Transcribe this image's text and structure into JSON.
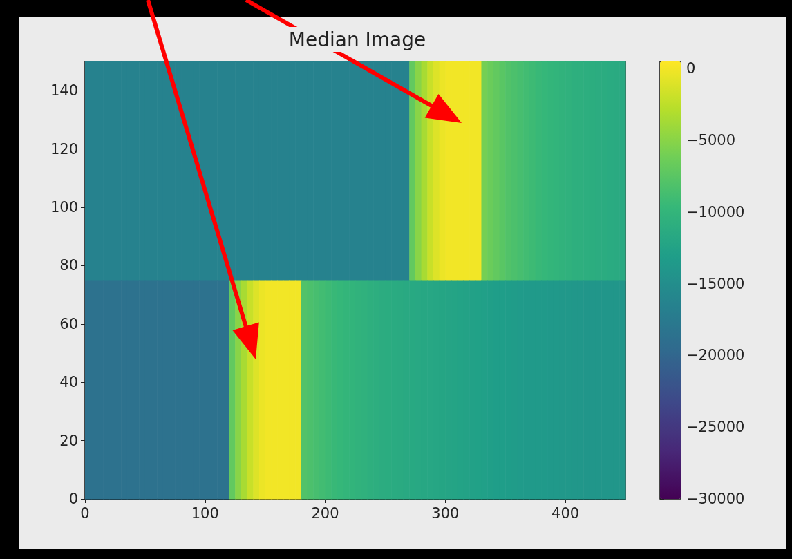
{
  "chart_data": {
    "type": "heatmap",
    "title": "Median Image",
    "xlim": [
      0,
      450
    ],
    "xticks": [
      0,
      100,
      200,
      300,
      400
    ],
    "ylim": [
      0,
      150
    ],
    "yticks": [
      0,
      20,
      40,
      60,
      80,
      100,
      120,
      140
    ],
    "clim": [
      -30000,
      500
    ],
    "cticks": [
      0,
      {
        "value": -5000,
        "label": "−5000"
      },
      {
        "value": -10000,
        "label": "−10000"
      },
      {
        "value": -15000,
        "label": "−15000"
      },
      {
        "value": -20000,
        "label": "−20000"
      },
      {
        "value": -25000,
        "label": "−25000"
      },
      {
        "value": -30000,
        "label": "−30000"
      }
    ],
    "cells": [
      [
        -16500,
        -16500,
        -16500,
        -16500,
        -16500,
        -16500,
        -16500,
        -16500,
        -16500,
        -16500,
        -16500,
        -16500,
        -16500,
        -16500,
        -16500,
        -16500,
        -16500,
        -16500,
        -16500,
        -16500,
        -16500,
        -16500,
        -16500,
        -16500,
        -16500,
        -16500,
        -16500,
        -16500,
        -16500,
        -16500,
        -16500,
        -16500,
        -16500,
        -16500,
        -16500,
        -16500,
        -16500,
        -16500,
        -16500,
        -16500,
        -16500,
        -16500,
        -16500,
        -16500,
        -16500,
        -16500,
        -16500,
        -16500,
        -16500,
        -16500,
        -16500,
        -16500,
        -16500,
        -16500,
        -7000,
        -5000,
        -3500,
        -2000,
        -1000,
        -300,
        0,
        0,
        0,
        0,
        0,
        0,
        -6000,
        -6500,
        -7000,
        -7500,
        -8000,
        -8300,
        -8600,
        -8900,
        -9200,
        -9500,
        -9700,
        -9900,
        -10100,
        -10300,
        -10500,
        -10700,
        -10800,
        -10900,
        -11000,
        -11100,
        -11200,
        -11300,
        -11400,
        -11500
      ],
      [
        -18500,
        -18500,
        -18500,
        -18500,
        -18500,
        -18500,
        -18500,
        -18500,
        -18500,
        -18500,
        -18500,
        -18500,
        -18500,
        -18500,
        -18500,
        -18500,
        -18500,
        -18500,
        -18500,
        -18500,
        -18500,
        -18500,
        -18500,
        -18500,
        -7000,
        -5000,
        -3500,
        -2000,
        -1000,
        -300,
        0,
        0,
        0,
        0,
        0,
        0,
        -8000,
        -8300,
        -8600,
        -8900,
        -9200,
        -9500,
        -9700,
        -9900,
        -10100,
        -10300,
        -10500,
        -10700,
        -10900,
        -11100,
        -11200,
        -11300,
        -11400,
        -11500,
        -11600,
        -11700,
        -11800,
        -11900,
        -12000,
        -12100,
        -12200,
        -12300,
        -12400,
        -12500,
        -12600,
        -12700,
        -12800,
        -12900,
        -13000,
        -13100,
        -13200,
        -13300,
        -13400,
        -13500,
        -13500,
        -13600,
        -13600,
        -13700,
        -13700,
        -13800,
        -13800,
        -13900,
        -13900,
        -14000,
        -14000,
        -14000,
        -14000,
        -14000,
        -14000,
        -14000
      ]
    ]
  }
}
